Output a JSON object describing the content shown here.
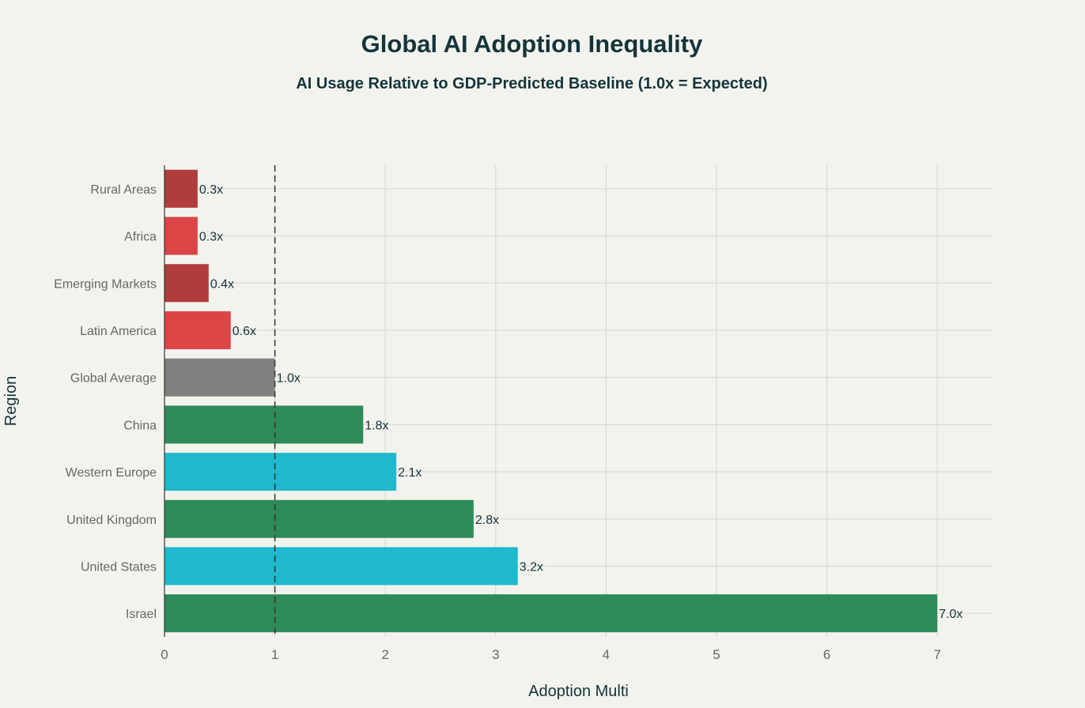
{
  "chart_data": {
    "type": "bar",
    "orientation": "horizontal",
    "title": "Global AI Adoption Inequality",
    "subtitle": "AI Usage Relative to GDP-Predicted Baseline (1.0x = Expected)",
    "xlabel": "Adoption Multi",
    "ylabel": "Region",
    "xlim": [
      0,
      7.5
    ],
    "xticks": [
      0,
      1,
      2,
      3,
      4,
      5,
      6,
      7
    ],
    "grid": true,
    "reference_line": {
      "x": 1,
      "style": "dashed"
    },
    "categories": [
      "Rural Areas",
      "Africa",
      "Emerging Markets",
      "Latin America",
      "Global Average",
      "China",
      "Western Europe",
      "United Kingdom",
      "United States",
      "Israel"
    ],
    "values": [
      0.3,
      0.3,
      0.4,
      0.6,
      1.0,
      1.8,
      2.1,
      2.8,
      3.2,
      7.0
    ],
    "data_labels": [
      "0.3x",
      "0.3x",
      "0.4x",
      "0.6x",
      "1.0x",
      "1.8x",
      "2.1x",
      "2.8x",
      "3.2x",
      "7.0x"
    ],
    "colors": [
      "#b13c3c",
      "#db4545",
      "#b13c3c",
      "#db4545",
      "#808080",
      "#2e8b57",
      "#1fb8cd",
      "#2e8b57",
      "#1fb8cd",
      "#2e8b57"
    ]
  }
}
